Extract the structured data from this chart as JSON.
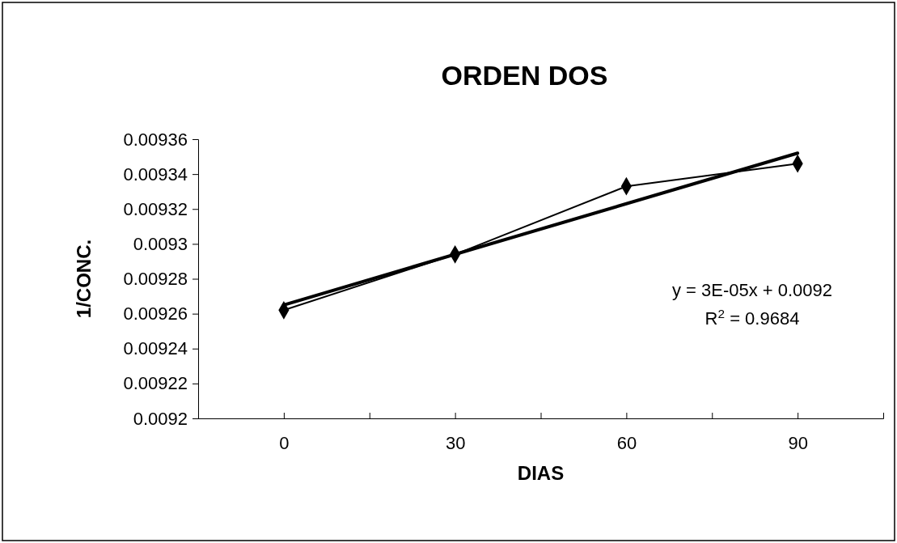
{
  "chart_data": {
    "type": "line",
    "title": "ORDEN DOS",
    "xlabel": "DIAS",
    "ylabel": "1/CONC.",
    "x": [
      0,
      30,
      60,
      90
    ],
    "xlim": [
      -15,
      105
    ],
    "xticks": [
      {
        "value": -15,
        "label": null
      },
      0,
      {
        "value": 15,
        "label": null
      },
      30,
      {
        "value": 45,
        "label": null
      },
      60,
      {
        "value": 75,
        "label": null
      },
      90,
      {
        "value": 105,
        "label": null
      }
    ],
    "ylim": [
      0.0092,
      0.00936
    ],
    "yticks": [
      0.0092,
      0.00922,
      0.00924,
      0.00926,
      0.00928,
      0.0093,
      0.00932,
      0.00934,
      0.00936
    ],
    "series": [
      {
        "color": "#000000",
        "values": [
          0.009262,
          0.009294,
          0.009333,
          0.009346
        ],
        "marker": "diamond"
      },
      {
        "type": "line",
        "color": "#000000",
        "x": [
          0,
          90
        ],
        "values": [
          0.009265,
          0.009352
        ],
        "marker": "none"
      }
    ],
    "annotations": [
      "y = 3E-05x + 0.0092",
      "R$^{2}$ = 0.9684"
    ],
    "line_style": "solid"
  }
}
